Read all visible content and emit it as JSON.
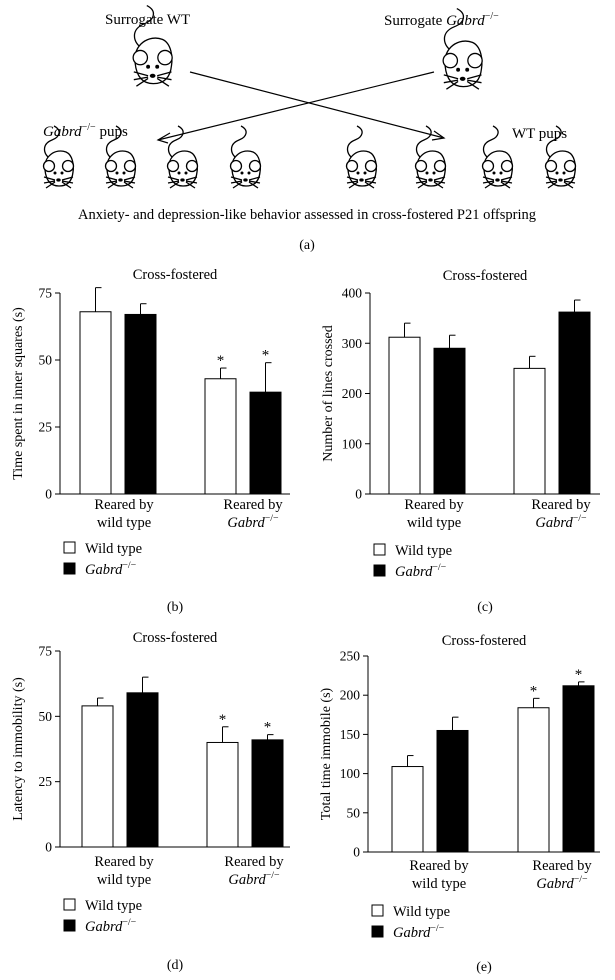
{
  "diagram": {
    "surrogate_wt": "Surrogate WT",
    "surrogate_ko_prefix": "Surrogate ",
    "ko_pups_suffix": " pups",
    "wt_pups": "WT pups",
    "caption": "Anxiety- and depression-like behavior assessed in cross-fostered P21 offspring",
    "panel_label": "(a)"
  },
  "genotype": {
    "gene": "Gabrd",
    "superscript": "−/−"
  },
  "legend": {
    "wild_type": "Wild type"
  },
  "colors": {
    "wild_type_fill": "#ffffff",
    "knockout_fill": "#000000",
    "stroke": "#000000"
  },
  "chart_data": [
    {
      "id": "b",
      "type": "bar",
      "panel_label": "(b)",
      "title": "Cross-fostered",
      "ylabel": "Time spent in inner squares (s)",
      "ylim": [
        0,
        75
      ],
      "yticks": [
        0,
        25,
        50,
        75
      ],
      "categories": [
        {
          "line1": "Reared by",
          "line2": "wild type"
        },
        {
          "line1": "Reared by",
          "line2_gene": true
        }
      ],
      "series": [
        {
          "name": "Wild type",
          "values": [
            68,
            43
          ],
          "errors": [
            9,
            4
          ],
          "significant": [
            false,
            true
          ]
        },
        {
          "name": "Gabrd−/−",
          "values": [
            67,
            38
          ],
          "errors": [
            4,
            11
          ],
          "significant": [
            false,
            true
          ]
        }
      ],
      "significance_marker": "*"
    },
    {
      "id": "c",
      "type": "bar",
      "panel_label": "(c)",
      "title": "Cross-fostered",
      "ylabel": "Number of lines crossed",
      "ylim": [
        0,
        400
      ],
      "yticks": [
        0,
        100,
        200,
        300,
        400
      ],
      "categories": [
        {
          "line1": "Reared by",
          "line2": "wild type"
        },
        {
          "line1": "Reared by",
          "line2_gene": true
        }
      ],
      "series": [
        {
          "name": "Wild type",
          "values": [
            312,
            250
          ],
          "errors": [
            28,
            24
          ],
          "significant": [
            false,
            false
          ]
        },
        {
          "name": "Gabrd−/−",
          "values": [
            290,
            362
          ],
          "errors": [
            26,
            24
          ],
          "significant": [
            false,
            false
          ]
        }
      ],
      "significance_marker": "*"
    },
    {
      "id": "d",
      "type": "bar",
      "panel_label": "(d)",
      "title": "Cross-fostered",
      "ylabel": "Latency to immobility (s)",
      "ylim": [
        0,
        75
      ],
      "yticks": [
        0,
        25,
        50,
        75
      ],
      "categories": [
        {
          "line1": "Reared by",
          "line2": "wild type"
        },
        {
          "line1": "Reared by",
          "line2_gene": true
        }
      ],
      "series": [
        {
          "name": "Wild type",
          "values": [
            54,
            40
          ],
          "errors": [
            3,
            6
          ],
          "significant": [
            false,
            true
          ]
        },
        {
          "name": "Gabrd−/−",
          "values": [
            59,
            41
          ],
          "errors": [
            6,
            2
          ],
          "significant": [
            false,
            true
          ]
        }
      ],
      "significance_marker": "*"
    },
    {
      "id": "e",
      "type": "bar",
      "panel_label": "(e)",
      "title": "Cross-fostered",
      "ylabel": "Total time immobile (s)",
      "ylim": [
        0,
        250
      ],
      "yticks": [
        0,
        50,
        100,
        150,
        200,
        250
      ],
      "categories": [
        {
          "line1": "Reared by",
          "line2": "wild type"
        },
        {
          "line1": "Reared by",
          "line2_gene": true
        }
      ],
      "series": [
        {
          "name": "Wild type",
          "values": [
            109,
            184
          ],
          "errors": [
            14,
            12
          ],
          "significant": [
            false,
            true
          ]
        },
        {
          "name": "Gabrd−/−",
          "values": [
            155,
            212
          ],
          "errors": [
            17,
            5
          ],
          "significant": [
            false,
            true
          ]
        }
      ],
      "significance_marker": "*"
    }
  ]
}
